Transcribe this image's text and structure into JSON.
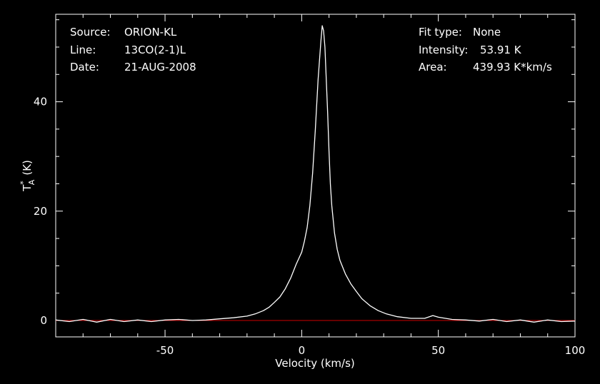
{
  "info": {
    "source_label": "Source:",
    "source_value": "ORION-KL",
    "line_label": "Line:",
    "line_value": "13CO(2-1)L",
    "date_label": "Date:",
    "date_value": "21-AUG-2008",
    "fit_label": "Fit type:",
    "fit_value": "None",
    "intensity_label": "Intensity:",
    "intensity_value": "53.91 K",
    "area_label": "Area:",
    "area_value": "439.93 K*km/s"
  },
  "chart_data": {
    "type": "line",
    "xlabel": "Velocity (km/s)",
    "ylabel_main": "T",
    "ylabel_sup": "*",
    "ylabel_sub": "A",
    "ylabel_unit": "(K)",
    "xlim": [
      -90,
      100
    ],
    "ylim": [
      -3,
      56
    ],
    "xticks": [
      -50,
      0,
      50,
      100
    ],
    "xtick_labels": [
      "-50",
      "0",
      "50",
      "100"
    ],
    "yticks": [
      0,
      20,
      40
    ],
    "ytick_labels": [
      "0",
      "20",
      "40"
    ],
    "colors": {
      "spectrum": "#ffffff",
      "baseline": "#cc0000",
      "axes": "#ffffff"
    },
    "baseline_y": 0,
    "series": [
      {
        "x": [
          -90,
          -85,
          -80,
          -75,
          -70,
          -65,
          -60,
          -55,
          -50,
          -45,
          -40,
          -35,
          -30,
          -25,
          -20,
          -17,
          -14,
          -12,
          -10,
          -8,
          -6,
          -4,
          -2,
          0,
          1,
          2,
          3,
          4,
          5,
          6,
          7,
          7.5,
          8,
          8.5,
          9,
          9.5,
          10,
          10.5,
          11,
          12,
          13,
          14,
          16,
          18,
          20,
          22,
          25,
          28,
          31,
          35,
          40,
          45,
          48,
          50,
          55,
          60,
          65,
          70,
          75,
          80,
          85,
          90,
          95,
          100
        ],
        "y": [
          0.1,
          -0.2,
          0.2,
          -0.3,
          0.2,
          -0.2,
          0.1,
          -0.2,
          0.1,
          0.2,
          0.0,
          0.1,
          0.3,
          0.5,
          0.8,
          1.2,
          1.8,
          2.4,
          3.3,
          4.3,
          5.8,
          7.8,
          10.3,
          12.5,
          14.5,
          17.0,
          21.0,
          27.0,
          35.0,
          44.0,
          51.0,
          53.91,
          53.0,
          50.0,
          44.0,
          38.0,
          31.0,
          25.0,
          21.0,
          16.0,
          13.0,
          11.0,
          8.5,
          6.7,
          5.3,
          4.0,
          2.7,
          1.8,
          1.2,
          0.7,
          0.4,
          0.4,
          0.9,
          0.6,
          0.2,
          0.1,
          -0.1,
          0.2,
          -0.2,
          0.1,
          -0.3,
          0.1,
          -0.2,
          -0.1
        ]
      }
    ]
  }
}
